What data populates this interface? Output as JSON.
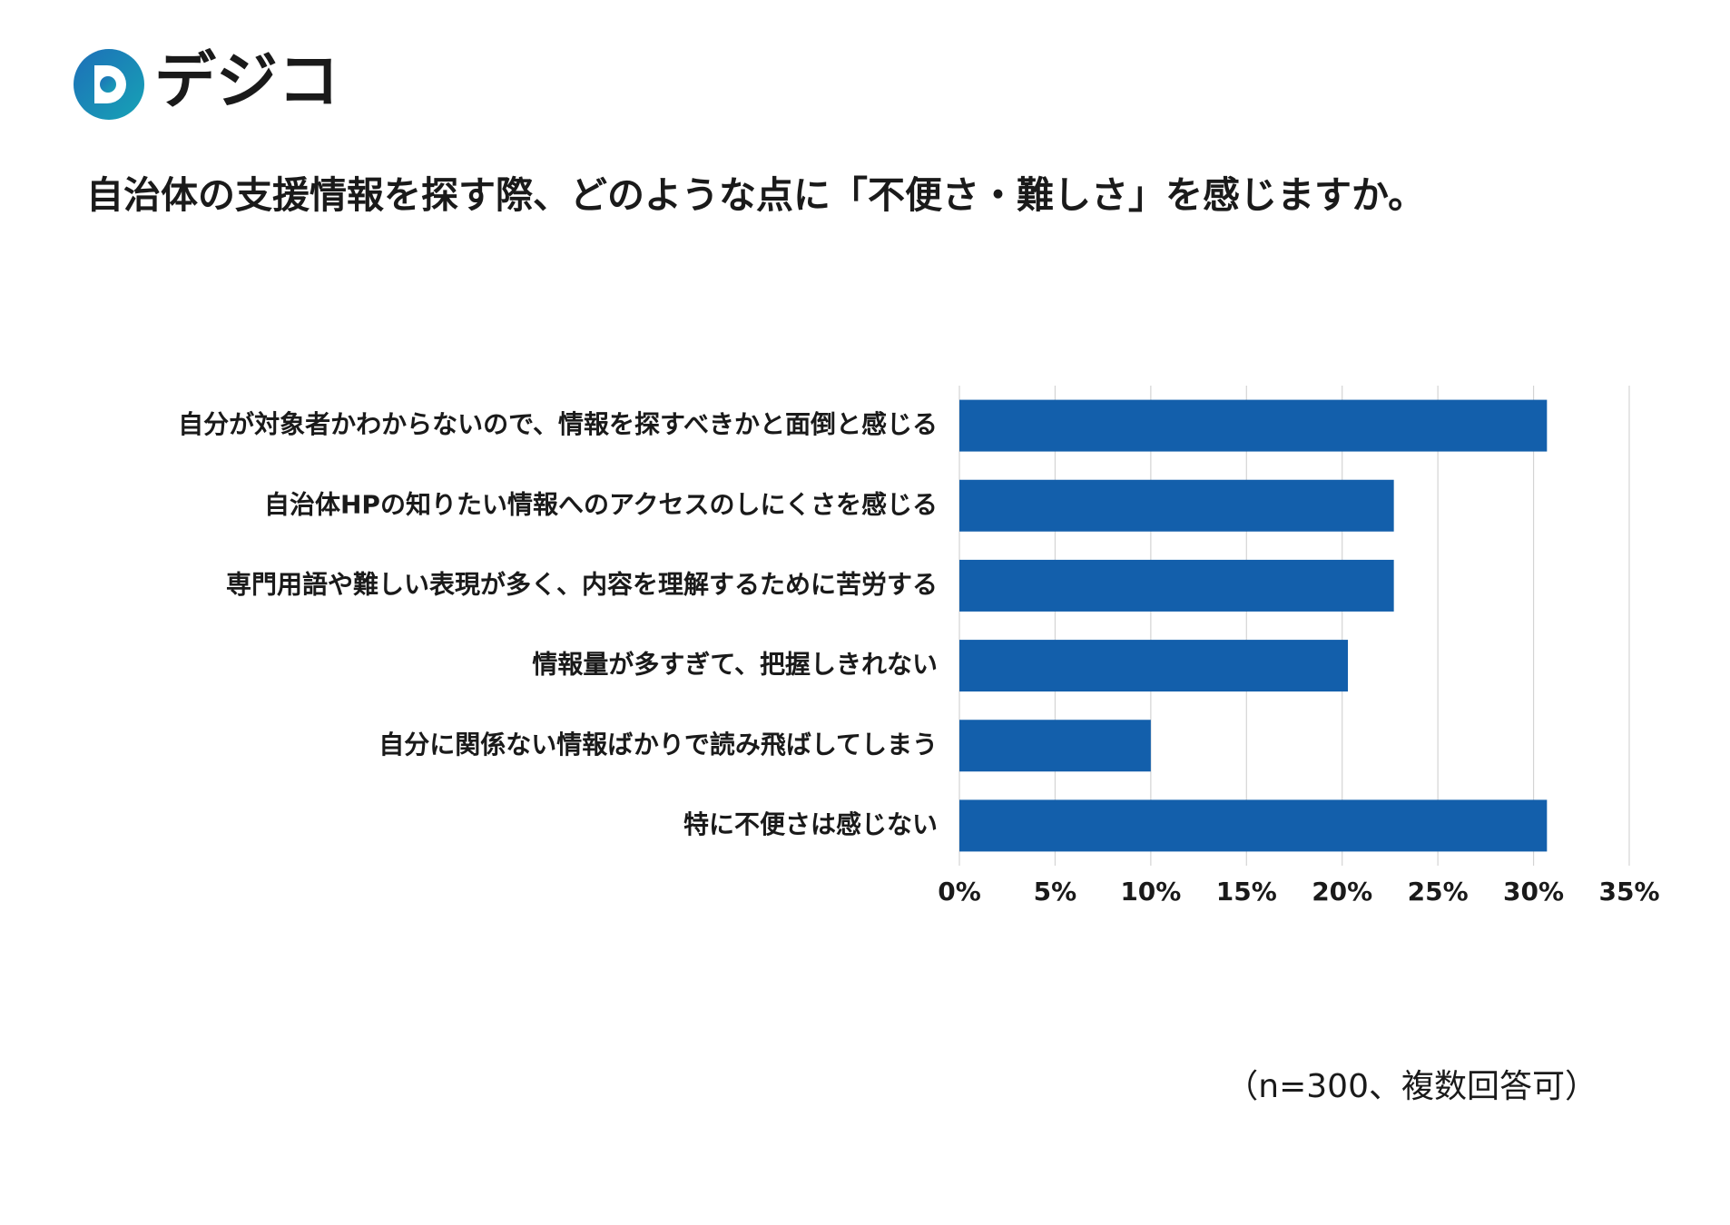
{
  "header": {
    "logo": "デジコ"
  },
  "chart_data": {
    "type": "hbar",
    "title": "自治体の支援情報を探す際、どのような点に「不便さ・難しさ」を感じますか。",
    "categories": [
      "自分が対象者かわからないので、情報を探すべきかと面倒と感じる",
      "自治体HPの知りたい情報へのアクセスのしにくさを感じる",
      "専門用語や難しい表現が多く、内容を理解するために苦労する",
      "情報量が多すぎて、把握しきれない",
      "自分に関係ない情報ばかりで読み飛ばしてしまう",
      "特に不便さは感じない"
    ],
    "values": [
      30.7,
      22.7,
      22.7,
      20.3,
      10,
      30.7
    ],
    "color": "#135fab",
    "xlim": [
      0,
      35
    ],
    "xticks": [
      {
        "value": 0,
        "label": "0%"
      },
      {
        "value": 5,
        "label": "5%"
      },
      {
        "value": 10,
        "label": "10%"
      },
      {
        "value": 15,
        "label": "15%"
      },
      {
        "value": 20,
        "label": "20%"
      },
      {
        "value": 25,
        "label": "25%"
      },
      {
        "value": 30,
        "label": "30%"
      },
      {
        "value": 35,
        "label": "35%"
      }
    ],
    "grid": true,
    "note": "（n=300、複数回答可）"
  }
}
